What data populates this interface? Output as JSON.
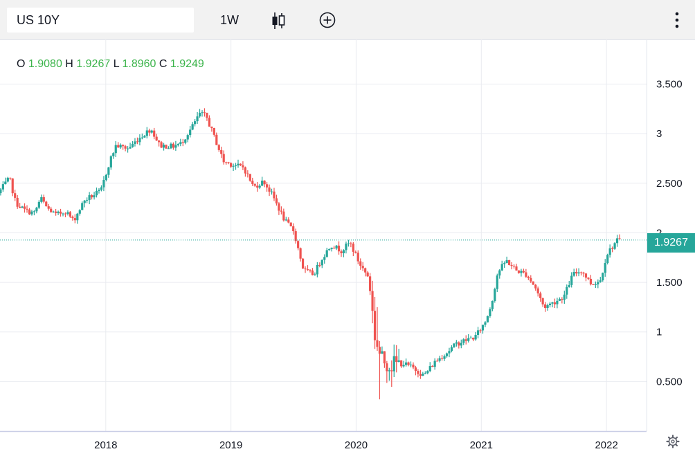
{
  "toolbar": {
    "symbol": "US 10Y",
    "timeframe": "1W",
    "icons": [
      "candlestick-icon",
      "add-compare-icon",
      "more-vertical-icon"
    ]
  },
  "ohlc": {
    "o_label": "O",
    "o_value": "1.9080",
    "h_label": "H",
    "h_value": "1.9267",
    "l_label": "L",
    "l_value": "1.8960",
    "c_label": "C",
    "c_value": "1.9249"
  },
  "last_price": "1.9267",
  "colors": {
    "up": "#26a69a",
    "down": "#ef5350",
    "grid": "#e9ebf0",
    "ohlc_value": "#3cb44b"
  },
  "chart_data": {
    "type": "candlestick",
    "timeframe": "1W",
    "x_tick_labels": [
      "2018",
      "2019",
      "2020",
      "2021",
      "2022"
    ],
    "y_tick_labels": [
      "0.500",
      "1",
      "1.500",
      "2",
      "2.500",
      "3",
      "3.500"
    ],
    "y_ticks": [
      0.5,
      1,
      1.5,
      2,
      2.5,
      3,
      3.5
    ],
    "ylim": [
      0,
      3.95
    ],
    "xlim": [
      2017.155,
      2022.32
    ],
    "last_price": 1.9267,
    "grid": true,
    "trend": [
      [
        2017.16,
        2.4
      ],
      [
        2017.25,
        2.55
      ],
      [
        2017.3,
        2.3
      ],
      [
        2017.38,
        2.22
      ],
      [
        2017.45,
        2.2
      ],
      [
        2017.5,
        2.35
      ],
      [
        2017.55,
        2.25
      ],
      [
        2017.62,
        2.18
      ],
      [
        2017.7,
        2.22
      ],
      [
        2017.76,
        2.12
      ],
      [
        2017.85,
        2.33
      ],
      [
        2017.92,
        2.38
      ],
      [
        2017.98,
        2.42
      ],
      [
        2018.05,
        2.72
      ],
      [
        2018.1,
        2.88
      ],
      [
        2018.2,
        2.85
      ],
      [
        2018.28,
        2.95
      ],
      [
        2018.38,
        3.05
      ],
      [
        2018.45,
        2.88
      ],
      [
        2018.55,
        2.87
      ],
      [
        2018.62,
        2.9
      ],
      [
        2018.7,
        3.05
      ],
      [
        2018.77,
        3.2
      ],
      [
        2018.82,
        3.18
      ],
      [
        2018.9,
        2.92
      ],
      [
        2018.96,
        2.72
      ],
      [
        2019.05,
        2.68
      ],
      [
        2019.12,
        2.66
      ],
      [
        2019.2,
        2.46
      ],
      [
        2019.28,
        2.52
      ],
      [
        2019.35,
        2.38
      ],
      [
        2019.45,
        2.12
      ],
      [
        2019.52,
        2.02
      ],
      [
        2019.6,
        1.62
      ],
      [
        2019.68,
        1.58
      ],
      [
        2019.75,
        1.75
      ],
      [
        2019.82,
        1.88
      ],
      [
        2019.9,
        1.82
      ],
      [
        2019.97,
        1.9
      ],
      [
        2020.05,
        1.68
      ],
      [
        2020.12,
        1.55
      ],
      [
        2020.17,
        0.95
      ],
      [
        2020.22,
        0.72
      ],
      [
        2020.3,
        0.67
      ],
      [
        2020.4,
        0.68
      ],
      [
        2020.47,
        0.64
      ],
      [
        2020.56,
        0.56
      ],
      [
        2020.65,
        0.7
      ],
      [
        2020.75,
        0.8
      ],
      [
        2020.82,
        0.88
      ],
      [
        2020.9,
        0.92
      ],
      [
        2020.97,
        0.95
      ],
      [
        2021.05,
        1.1
      ],
      [
        2021.1,
        1.28
      ],
      [
        2021.15,
        1.6
      ],
      [
        2021.22,
        1.72
      ],
      [
        2021.3,
        1.62
      ],
      [
        2021.38,
        1.58
      ],
      [
        2021.45,
        1.45
      ],
      [
        2021.52,
        1.25
      ],
      [
        2021.6,
        1.3
      ],
      [
        2021.68,
        1.36
      ],
      [
        2021.75,
        1.58
      ],
      [
        2021.82,
        1.62
      ],
      [
        2021.9,
        1.48
      ],
      [
        2021.97,
        1.52
      ],
      [
        2022.02,
        1.78
      ],
      [
        2022.1,
        1.92
      ]
    ]
  }
}
